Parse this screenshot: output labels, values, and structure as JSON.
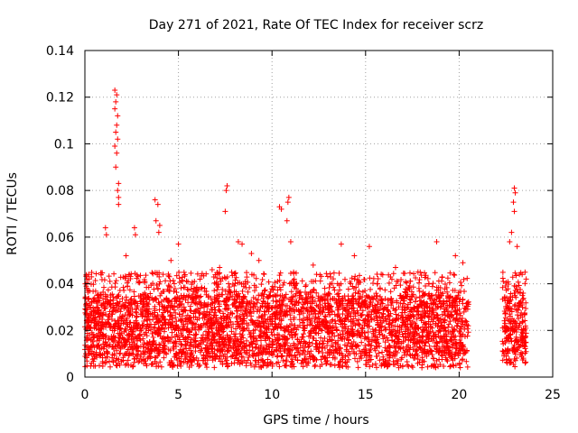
{
  "chart_data": {
    "type": "scatter",
    "title": "Day 271 of 2021, Rate Of TEC Index for receiver scrz",
    "xlabel": "GPS time / hours",
    "ylabel": "ROTI / TECUs",
    "xlim": [
      0,
      25
    ],
    "ylim": [
      0,
      0.14
    ],
    "x_ticks": [
      0,
      5,
      10,
      15,
      20,
      25
    ],
    "x_tick_labels": [
      "0",
      "5",
      "10",
      "15",
      "20",
      "25"
    ],
    "y_ticks": [
      0,
      0.02,
      0.04,
      0.06,
      0.08,
      0.1,
      0.12,
      0.14
    ],
    "y_tick_labels": [
      "0",
      "0.02",
      "0.04",
      "0.06",
      "0.08",
      "0.1",
      "0.12",
      "0.14"
    ],
    "grid": true,
    "marker": "+",
    "color": "#ff0000",
    "series": [
      {
        "name": "ROTI",
        "coverage": [
          [
            0,
            20.5
          ],
          [
            22.3,
            23.6
          ]
        ],
        "typical_range": [
          0.01,
          0.035
        ],
        "points": [
          [
            1.6,
            0.123
          ],
          [
            1.7,
            0.121
          ],
          [
            1.65,
            0.118
          ],
          [
            1.6,
            0.115
          ],
          [
            1.75,
            0.112
          ],
          [
            1.7,
            0.108
          ],
          [
            1.65,
            0.105
          ],
          [
            1.75,
            0.102
          ],
          [
            1.6,
            0.099
          ],
          [
            1.7,
            0.096
          ],
          [
            1.65,
            0.09
          ],
          [
            1.8,
            0.083
          ],
          [
            1.75,
            0.08
          ],
          [
            1.8,
            0.077
          ],
          [
            1.8,
            0.074
          ],
          [
            3.75,
            0.076
          ],
          [
            3.9,
            0.074
          ],
          [
            3.8,
            0.067
          ],
          [
            4.0,
            0.065
          ],
          [
            3.95,
            0.062
          ],
          [
            7.6,
            0.082
          ],
          [
            7.55,
            0.08
          ],
          [
            7.5,
            0.071
          ],
          [
            10.4,
            0.073
          ],
          [
            10.5,
            0.072
          ],
          [
            10.9,
            0.077
          ],
          [
            10.85,
            0.075
          ],
          [
            10.8,
            0.067
          ],
          [
            22.95,
            0.081
          ],
          [
            23.0,
            0.079
          ],
          [
            22.9,
            0.075
          ],
          [
            22.95,
            0.071
          ],
          [
            22.8,
            0.062
          ],
          [
            23.1,
            0.056
          ],
          [
            22.7,
            0.058
          ],
          [
            1.1,
            0.064
          ],
          [
            1.15,
            0.061
          ],
          [
            2.65,
            0.064
          ],
          [
            2.7,
            0.061
          ],
          [
            5.0,
            0.057
          ],
          [
            8.2,
            0.058
          ],
          [
            8.4,
            0.057
          ],
          [
            11.0,
            0.058
          ],
          [
            13.7,
            0.057
          ],
          [
            15.2,
            0.056
          ],
          [
            16.6,
            0.047
          ],
          [
            18.8,
            0.058
          ],
          [
            19.8,
            0.052
          ],
          [
            20.2,
            0.049
          ],
          [
            8.9,
            0.053
          ],
          [
            9.3,
            0.05
          ],
          [
            12.2,
            0.048
          ],
          [
            14.4,
            0.052
          ],
          [
            17.8,
            0.045
          ],
          [
            6.8,
            0.046
          ],
          [
            7.2,
            0.047
          ],
          [
            0.2,
            0.044
          ],
          [
            0.35,
            0.043
          ],
          [
            2.2,
            0.052
          ],
          [
            4.6,
            0.05
          ]
        ]
      }
    ]
  }
}
